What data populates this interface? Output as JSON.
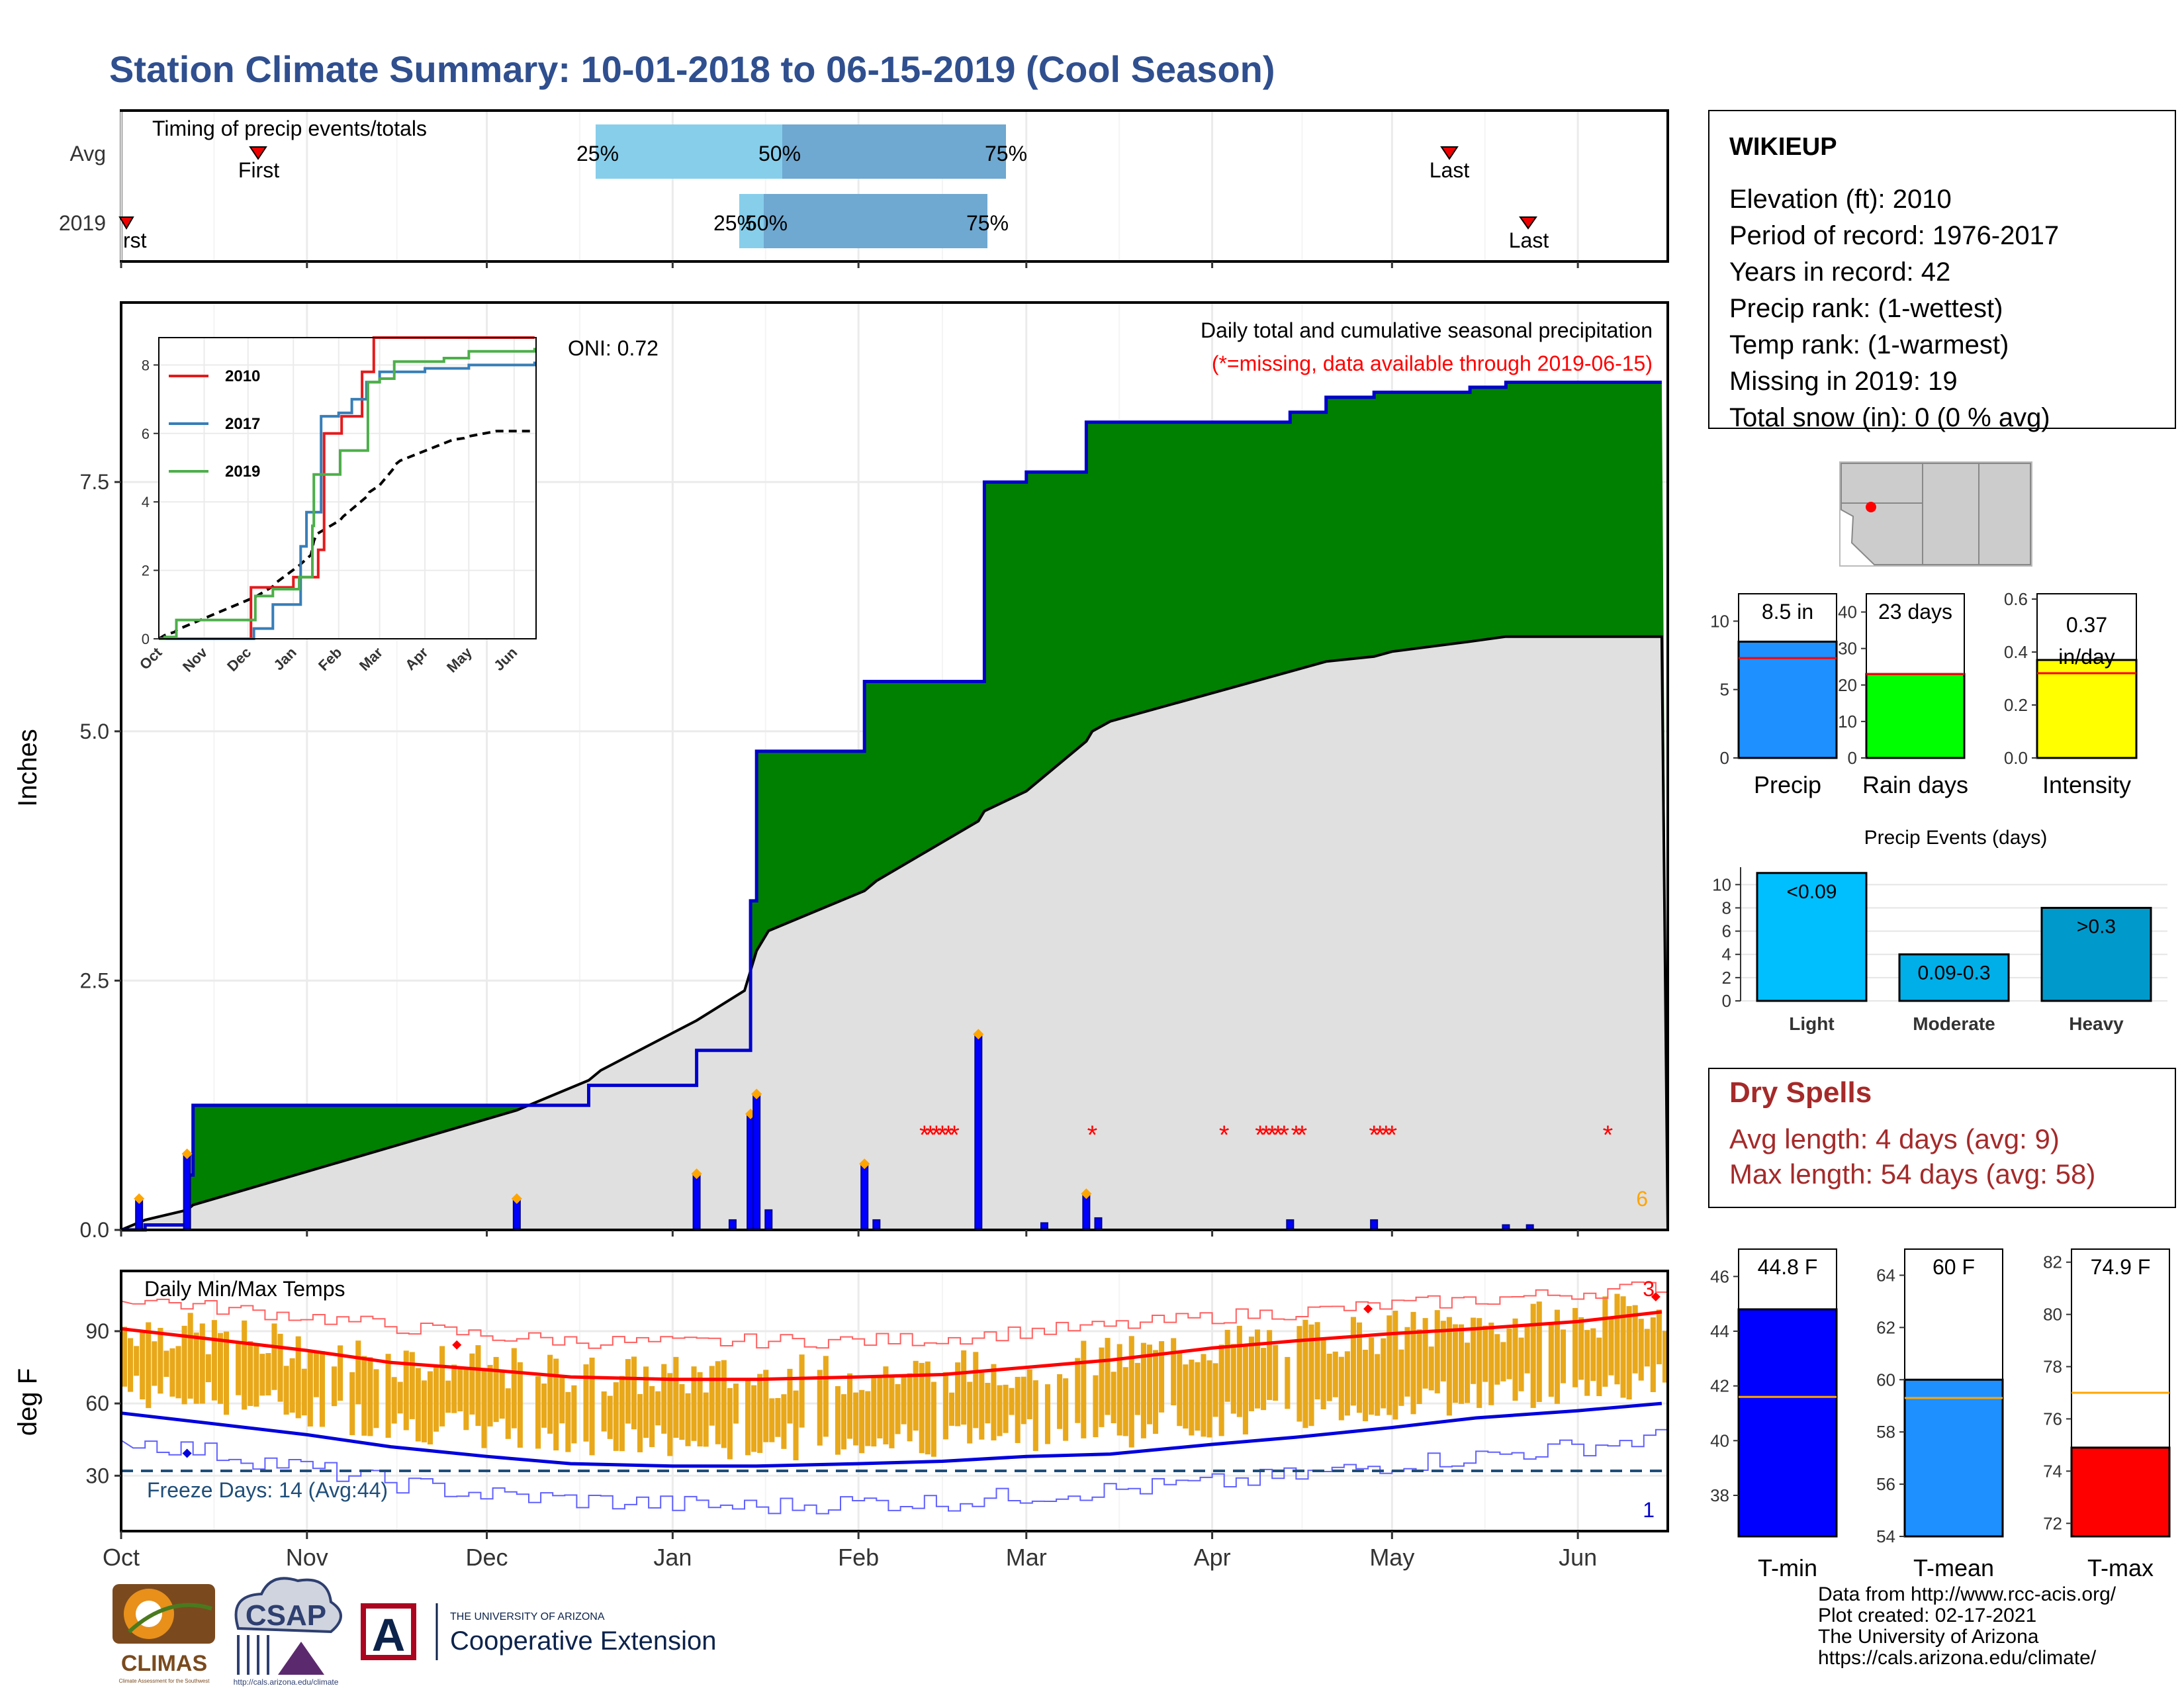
{
  "title": "Station Climate Summary: 10-01-2018 to 06-15-2019 (Cool Season)",
  "colors": {
    "title": "#2f4f8f",
    "precip_surplus": "#008000",
    "precip_deficit": "#8b5a00",
    "cumulative_line": "#0000cc",
    "normal_fill": "#e0e0e0",
    "daily_bar": "#0000ff",
    "range_bar": "#e8a81a",
    "tmax_avg": "#ff0000",
    "tmin_avg": "#0000dd",
    "freeze_line": "#1f4e79",
    "dry_spells": "#a52a2a"
  },
  "icons": [
    "triangle-down-marker",
    "diamond-marker",
    "map-marker"
  ],
  "timing": {
    "label": "Timing of precip events/totals",
    "rows": [
      "Avg",
      "2019"
    ],
    "first_label": "First",
    "last_label": "Last",
    "pct_labels": [
      "25%",
      "50%",
      "75%"
    ]
  },
  "main": {
    "ylabel": "Inches",
    "yticks": [
      "0.0",
      "2.5",
      "5.0",
      "7.5"
    ],
    "caption": "Daily total and cumulative seasonal precipitation",
    "missing_note": "(*=missing, data available through 2019-06-15)",
    "oni": "ONI: 0.72",
    "count_label": "6"
  },
  "inset": {
    "legend": [
      "2010",
      "2017",
      "2019"
    ],
    "legend_colors": [
      "#e41a1c",
      "#377eb8",
      "#4daf4a"
    ],
    "yticks": [
      "0",
      "2",
      "4",
      "6",
      "8"
    ],
    "xticks": [
      "Oct",
      "Nov",
      "Dec",
      "Jan",
      "Feb",
      "Mar",
      "Apr",
      "May",
      "Jun"
    ]
  },
  "temps": {
    "label": "Daily Min/Max Temps",
    "ylabel": "deg F",
    "yticks": [
      "30",
      "60",
      "90"
    ],
    "freeze": "Freeze Days: 14 (Avg:44)",
    "count_max": "3",
    "count_min": "1"
  },
  "months": [
    "Oct",
    "Nov",
    "Dec",
    "Jan",
    "Feb",
    "Mar",
    "Apr",
    "May",
    "Jun"
  ],
  "station": {
    "name": "WIKIEUP",
    "lines": [
      "Elevation (ft): 2010",
      "Period of record: 1976-2017",
      "Years in record: 42",
      "Precip rank:  (1-wettest)",
      "Temp rank:  (1-warmest)",
      "Missing in 2019: 19",
      "Total snow (in): 0 (0 % avg)"
    ]
  },
  "small_charts": {
    "precip": {
      "label": "Precip",
      "value_label": "8.5 in",
      "value": 8.5,
      "avg": 7.3,
      "ylim": [
        0,
        12
      ],
      "yticks": [
        "0",
        "5",
        "10"
      ],
      "color": "#1e90ff"
    },
    "rain_days": {
      "label": "Rain days",
      "value_label": "23 days",
      "value": 23,
      "avg": 23,
      "ylim": [
        0,
        45
      ],
      "yticks": [
        "0",
        "10",
        "20",
        "30",
        "40"
      ],
      "color": "#00ff00"
    },
    "intensity": {
      "label": "Intensity",
      "value_label": "0.37 in/day",
      "value": 0.37,
      "avg": 0.32,
      "ylim": [
        0,
        0.62
      ],
      "yticks": [
        "0.0",
        "0.2",
        "0.4",
        "0.6"
      ],
      "color": "#ffff00"
    }
  },
  "events": {
    "title": "Precip Events (days)",
    "categories": [
      "Light",
      "Moderate",
      "Heavy"
    ],
    "values": [
      11,
      4,
      8
    ],
    "bar_labels": [
      "<0.09",
      "0.09-0.3",
      ">0.3"
    ],
    "yticks": [
      "0",
      "2",
      "4",
      "6",
      "8",
      "10"
    ]
  },
  "dry_spells": {
    "title": "Dry Spells",
    "avg": "Avg length: 4 days (avg: 9)",
    "max": "Max length: 54 days (avg: 58)"
  },
  "temp_bars": {
    "tmin": {
      "label": "T-min",
      "value_label": "44.8 F",
      "value": 44.8,
      "avg": 41.6,
      "ylim": [
        36.5,
        47
      ],
      "yticks": [
        "38",
        "40",
        "42",
        "44",
        "46"
      ],
      "color": "#0000ff"
    },
    "tmean": {
      "label": "T-mean",
      "value_label": "60 F",
      "value": 60,
      "avg": 59.3,
      "ylim": [
        54,
        65
      ],
      "yticks": [
        "54",
        "56",
        "58",
        "60",
        "62",
        "64"
      ],
      "color": "#1e90ff"
    },
    "tmax": {
      "label": "T-max",
      "value_label": "74.9 F",
      "value": 74.9,
      "avg": 77,
      "ylim": [
        71.5,
        82.5
      ],
      "yticks": [
        "72",
        "74",
        "76",
        "78",
        "80",
        "82"
      ],
      "color": "#ff0000"
    }
  },
  "footer": [
    "Data from http://www.rcc-acis.org/",
    "Plot created: 02-17-2021",
    "The University of Arizona",
    "https://cals.arizona.edu/climate/"
  ],
  "logos": {
    "climas": "CLIMAS",
    "climas_sub": "Climate Assessment for the Southwest",
    "csap": "CSAP",
    "csap_url": "http://cals.arizona.edu/climate",
    "ua_letter": "A",
    "ua_small": "THE UNIVERSITY OF ARIZONA",
    "ua_big": "Cooperative Extension"
  },
  "chart_data": [
    {
      "type": "area",
      "title": "Daily total and cumulative seasonal precipitation",
      "ylabel": "Inches",
      "ylim": [
        0,
        9.3
      ],
      "x": [
        "10-01",
        "10-05",
        "10-12",
        "10-13",
        "12-06",
        "12-18",
        "12-20",
        "01-05",
        "01-13",
        "01-14",
        "01-15",
        "01-17",
        "02-02",
        "02-04",
        "02-21",
        "02-22",
        "03-01",
        "03-11",
        "03-12",
        "03-15",
        "04-14",
        "04-20",
        "04-28",
        "05-01",
        "05-14",
        "05-20",
        "06-15"
      ],
      "series": [
        {
          "name": "",
          "values": [
            0,
            0.05,
            0.55,
            1.25,
            1.25,
            1.45,
            1.45,
            1.8,
            1.8,
            3.3,
            4.8,
            4.8,
            5.5,
            5.5,
            5.5,
            7.5,
            7.6,
            8.1,
            8.1,
            8.1,
            8.2,
            8.35,
            8.4,
            8.4,
            8.45,
            8.5,
            8.5
          ]
        }
      ],
      "normal_cumulative": [
        0,
        0.1,
        0.2,
        0.25,
        1.2,
        1.5,
        1.6,
        2.1,
        2.4,
        2.6,
        2.8,
        3.0,
        3.4,
        3.5,
        4.1,
        4.2,
        4.4,
        4.9,
        5.0,
        5.1,
        5.6,
        5.7,
        5.75,
        5.8,
        5.9,
        5.95,
        5.95
      ],
      "daily_spikes": [
        {
          "date": "10-04",
          "value": 0.3
        },
        {
          "date": "10-12",
          "value": 0.75
        },
        {
          "date": "12-06",
          "value": 0.3
        },
        {
          "date": "01-05",
          "value": 0.55
        },
        {
          "date": "01-11",
          "value": 0.1
        },
        {
          "date": "01-14",
          "value": 1.15
        },
        {
          "date": "01-15",
          "value": 1.35
        },
        {
          "date": "01-17",
          "value": 0.2
        },
        {
          "date": "02-02",
          "value": 0.65
        },
        {
          "date": "02-04",
          "value": 0.1
        },
        {
          "date": "02-21",
          "value": 1.95
        },
        {
          "date": "03-04",
          "value": 0.07
        },
        {
          "date": "03-11",
          "value": 0.35
        },
        {
          "date": "03-13",
          "value": 0.12
        },
        {
          "date": "04-14",
          "value": 0.1
        },
        {
          "date": "04-28",
          "value": 0.1
        },
        {
          "date": "05-20",
          "value": 0.05
        },
        {
          "date": "05-24",
          "value": 0.05
        }
      ]
    },
    {
      "type": "line",
      "title": "Daily Min/Max Temps",
      "ylabel": "deg F",
      "ylim": [
        7,
        115
      ],
      "x": [
        "10-01",
        "10-15",
        "11-01",
        "11-15",
        "12-01",
        "12-15",
        "01-01",
        "01-15",
        "02-01",
        "02-15",
        "03-01",
        "03-15",
        "04-01",
        "04-15",
        "05-01",
        "05-15",
        "06-01",
        "06-15"
      ],
      "series": [
        {
          "name": "",
          "values": [
            91,
            87,
            82,
            77,
            74,
            71,
            70,
            70,
            71,
            72,
            75,
            78,
            83,
            86,
            89,
            91,
            94,
            98
          ]
        },
        {
          "name": "",
          "values": [
            56,
            52,
            47,
            42,
            38,
            35,
            34,
            34,
            35,
            36,
            38,
            39,
            43,
            46,
            50,
            54,
            57,
            60
          ]
        },
        {
          "name": "",
          "values": [
            104,
            100,
            96,
            92,
            88,
            86,
            85,
            86,
            86,
            87,
            90,
            92,
            96,
            98,
            101,
            103,
            106,
            109
          ]
        },
        {
          "name": "",
          "values": [
            45,
            40,
            33,
            27,
            22,
            20,
            18,
            17,
            19,
            19,
            22,
            24,
            27,
            30,
            35,
            38,
            42,
            46
          ]
        }
      ],
      "freeze_threshold": 32
    },
    {
      "type": "bar",
      "title": "Precip Events (days)",
      "categories": [
        "Light",
        "Moderate",
        "Heavy"
      ],
      "values": [
        11,
        4,
        8
      ],
      "ylim": [
        0,
        11.5
      ]
    }
  ]
}
